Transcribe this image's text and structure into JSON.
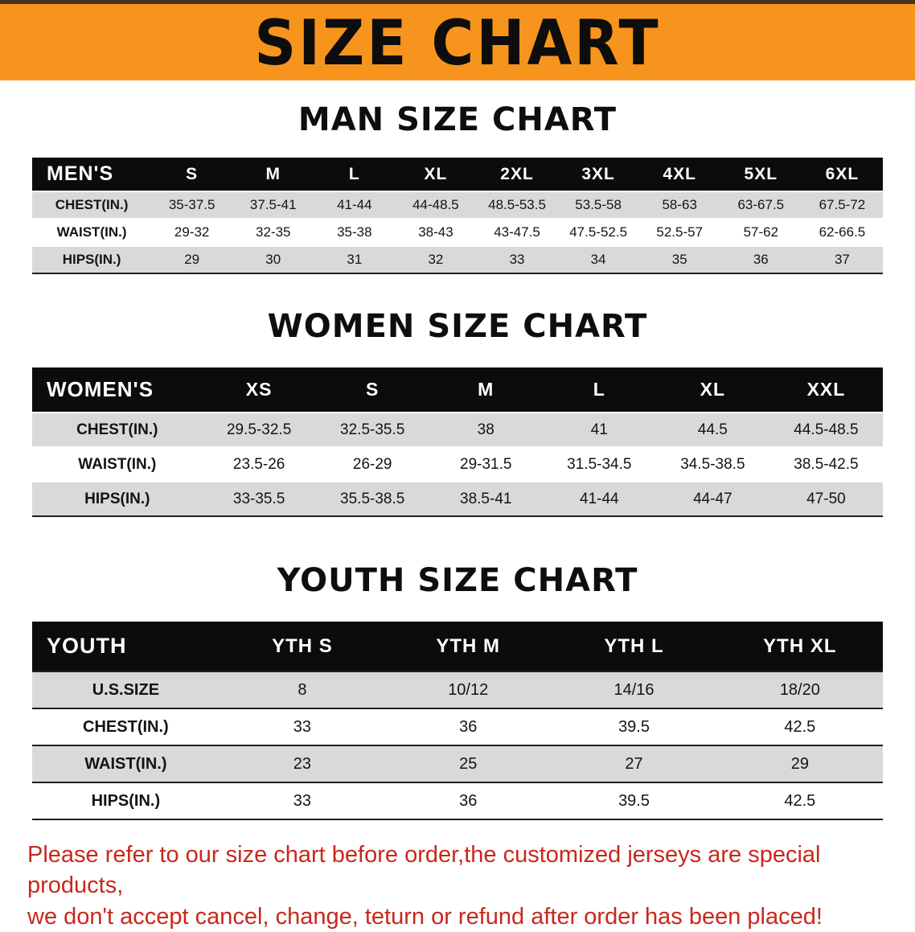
{
  "banner": {
    "title": "SIZE CHART"
  },
  "colors": {
    "banner_bg": "#f7941d",
    "table_header_bg": "#0c0c0c",
    "row_stripe": "#d9d9d9",
    "disclaimer_text": "#c8281c"
  },
  "sections": [
    {
      "heading": "MAN SIZE CHART",
      "table": {
        "header": [
          "MEN'S",
          "S",
          "M",
          "L",
          "XL",
          "2XL",
          "3XL",
          "4XL",
          "5XL",
          "6XL"
        ],
        "rows": [
          [
            "CHEST(IN.)",
            "35-37.5",
            "37.5-41",
            "41-44",
            "44-48.5",
            "48.5-53.5",
            "53.5-58",
            "58-63",
            "63-67.5",
            "67.5-72"
          ],
          [
            "WAIST(IN.)",
            "29-32",
            "32-35",
            "35-38",
            "38-43",
            "43-47.5",
            "47.5-52.5",
            "52.5-57",
            "57-62",
            "62-66.5"
          ],
          [
            "HIPS(IN.)",
            "29",
            "30",
            "31",
            "32",
            "33",
            "34",
            "35",
            "36",
            "37"
          ]
        ]
      }
    },
    {
      "heading": "WOMEN SIZE CHART",
      "table": {
        "header": [
          "WOMEN'S",
          "XS",
          "S",
          "M",
          "L",
          "XL",
          "XXL"
        ],
        "rows": [
          [
            "CHEST(IN.)",
            "29.5-32.5",
            "32.5-35.5",
            "38",
            "41",
            "44.5",
            "44.5-48.5"
          ],
          [
            "WAIST(IN.)",
            "23.5-26",
            "26-29",
            "29-31.5",
            "31.5-34.5",
            "34.5-38.5",
            "38.5-42.5"
          ],
          [
            "HIPS(IN.)",
            "33-35.5",
            "35.5-38.5",
            "38.5-41",
            "41-44",
            "44-47",
            "47-50"
          ]
        ]
      }
    },
    {
      "heading": "YOUTH SIZE CHART",
      "table": {
        "header": [
          "YOUTH",
          "YTH S",
          "YTH M",
          "YTH L",
          "YTH XL"
        ],
        "rows": [
          [
            "U.S.SIZE",
            "8",
            "10/12",
            "14/16",
            "18/20"
          ],
          [
            "CHEST(IN.)",
            "33",
            "36",
            "39.5",
            "42.5"
          ],
          [
            "WAIST(IN.)",
            "23",
            "25",
            "27",
            "29"
          ],
          [
            "HIPS(IN.)",
            "33",
            "36",
            "39.5",
            "42.5"
          ]
        ]
      }
    }
  ],
  "disclaimer": {
    "line1": "Please refer to our size chart before order,the customized jerseys are special products,",
    "line2": "we don't accept cancel, change, teturn or refund after order has been placed!"
  }
}
